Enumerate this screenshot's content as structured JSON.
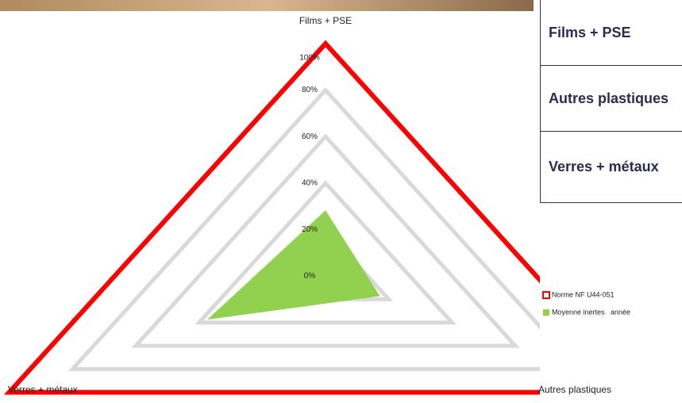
{
  "chart_data": {
    "type": "radar",
    "categories": [
      "Films + PSE",
      "Autres plastiques",
      "Verres + métaux"
    ],
    "series": [
      {
        "name": "Norme NF U44-051",
        "color": "#ff0000",
        "values": [
          100,
          100,
          100
        ]
      },
      {
        "name": "Moyenne inertes   année",
        "color": "#92d050",
        "values": [
          28,
          17,
          37
        ]
      }
    ],
    "ylim": [
      0,
      100
    ],
    "yticks": [
      {
        "value": 0,
        "label": "0%"
      },
      {
        "value": 20,
        "label": "20%"
      },
      {
        "value": 40,
        "label": "40%"
      },
      {
        "value": 60,
        "label": "60%"
      },
      {
        "value": 80,
        "label": "80%"
      },
      {
        "value": 100,
        "label": "100%"
      }
    ],
    "grid": true
  },
  "table": {
    "rows": [
      "Films + PSE",
      "Autres plastiques",
      "Verres + métaux"
    ]
  }
}
